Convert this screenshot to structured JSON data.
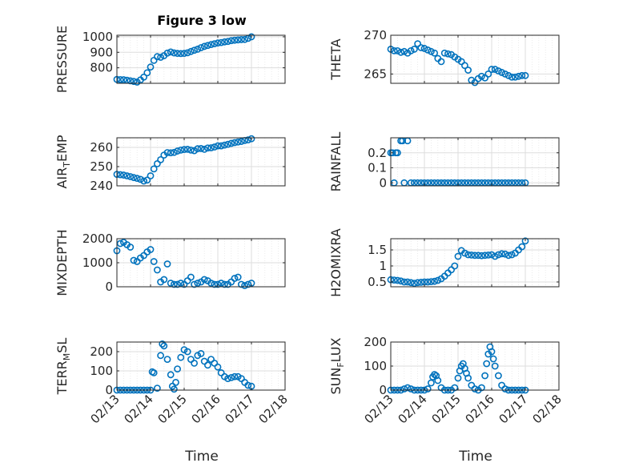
{
  "figure": {
    "title": "Figure 3 low",
    "xlabel": "Time",
    "x_ticks": [
      "02/13",
      "02/14",
      "02/15",
      "02/16",
      "02/17",
      "02/18"
    ],
    "marker_color": "#0072BD",
    "grid_color": "#dddddd",
    "axis_color": "#262626"
  },
  "chart_data": [
    {
      "type": "scatter",
      "title": "Figure 3 low",
      "xlabel": "",
      "ylabel": "PRESSURE",
      "xlim": [
        0,
        5
      ],
      "ylim": [
        700,
        1010
      ],
      "y_ticks": [
        800,
        900,
        1000
      ],
      "y_tick_labels": [
        "800",
        "900",
        "1000"
      ],
      "x_tick_labels": [],
      "grid": true,
      "x": [
        0.0,
        0.1,
        0.2,
        0.3,
        0.4,
        0.5,
        0.6,
        0.7,
        0.8,
        0.9,
        1.0,
        1.1,
        1.2,
        1.3,
        1.4,
        1.5,
        1.6,
        1.7,
        1.8,
        1.9,
        2.0,
        2.1,
        2.2,
        2.3,
        2.4,
        2.5,
        2.6,
        2.7,
        2.8,
        2.9,
        3.0,
        3.1,
        3.2,
        3.3,
        3.4,
        3.5,
        3.6,
        3.7,
        3.8,
        3.9,
        4.0
      ],
      "y": [
        725,
        724,
        723,
        720,
        716,
        712,
        708,
        722,
        740,
        768,
        805,
        848,
        872,
        868,
        878,
        895,
        902,
        896,
        893,
        892,
        893,
        897,
        905,
        913,
        920,
        930,
        938,
        944,
        950,
        955,
        960,
        963,
        967,
        970,
        975,
        978,
        980,
        982,
        983,
        990,
        1000
      ]
    },
    {
      "type": "scatter",
      "title": "",
      "xlabel": "",
      "ylabel": "THETA",
      "xlim": [
        0,
        5
      ],
      "ylim": [
        263.8,
        270
      ],
      "y_ticks": [
        265,
        270
      ],
      "y_tick_labels": [
        "265",
        "270"
      ],
      "x_tick_labels": [],
      "grid": true,
      "x": [
        0.0,
        0.1,
        0.2,
        0.3,
        0.4,
        0.5,
        0.6,
        0.7,
        0.8,
        0.9,
        1.0,
        1.1,
        1.2,
        1.3,
        1.4,
        1.5,
        1.6,
        1.7,
        1.8,
        1.9,
        2.0,
        2.1,
        2.2,
        2.3,
        2.4,
        2.5,
        2.6,
        2.7,
        2.8,
        2.9,
        3.0,
        3.1,
        3.2,
        3.3,
        3.4,
        3.5,
        3.6,
        3.7,
        3.8,
        3.9,
        4.0
      ],
      "y": [
        268.2,
        268.0,
        268.0,
        267.8,
        267.9,
        267.7,
        268.0,
        268.2,
        268.9,
        268.4,
        268.3,
        268.1,
        267.9,
        267.7,
        267.0,
        266.6,
        267.7,
        267.6,
        267.5,
        267.2,
        266.9,
        266.6,
        266.1,
        265.5,
        264.2,
        263.9,
        264.4,
        264.7,
        264.5,
        265.0,
        265.6,
        265.6,
        265.4,
        265.2,
        265.0,
        264.8,
        264.6,
        264.6,
        264.7,
        264.8,
        264.8
      ]
    },
    {
      "type": "scatter",
      "title": "",
      "xlabel": "",
      "ylabel": "AIR",
      "ylabel_sub": "T",
      "ylabel_tail": "EMP",
      "xlim": [
        0,
        5
      ],
      "ylim": [
        240,
        265
      ],
      "y_ticks": [
        240,
        250,
        260
      ],
      "y_tick_labels": [
        "240",
        "250",
        "260"
      ],
      "x_tick_labels": [],
      "grid": true,
      "x": [
        0.0,
        0.1,
        0.2,
        0.3,
        0.4,
        0.5,
        0.6,
        0.7,
        0.8,
        0.9,
        1.0,
        1.1,
        1.2,
        1.3,
        1.4,
        1.5,
        1.6,
        1.7,
        1.8,
        1.9,
        2.0,
        2.1,
        2.2,
        2.3,
        2.4,
        2.5,
        2.6,
        2.7,
        2.8,
        2.9,
        3.0,
        3.1,
        3.2,
        3.3,
        3.4,
        3.5,
        3.6,
        3.7,
        3.8,
        3.9,
        4.0
      ],
      "y": [
        246.0,
        245.8,
        245.6,
        245.2,
        244.8,
        244.3,
        243.9,
        243.4,
        242.5,
        243.0,
        245.2,
        248.8,
        251.5,
        253.6,
        256.0,
        257.3,
        257.2,
        257.4,
        258.1,
        258.6,
        258.9,
        259.0,
        258.6,
        258.3,
        259.3,
        259.4,
        259.0,
        259.7,
        259.8,
        260.2,
        260.8,
        260.8,
        261.2,
        261.6,
        262.1,
        262.5,
        262.8,
        263.1,
        263.6,
        263.9,
        264.5
      ]
    },
    {
      "type": "scatter",
      "title": "",
      "xlabel": "",
      "ylabel": "RAINFALL",
      "xlim": [
        0,
        5
      ],
      "ylim": [
        -0.02,
        0.3
      ],
      "y_ticks": [
        0,
        0.1,
        0.2
      ],
      "y_tick_labels": [
        "0",
        "0.1",
        "0.2"
      ],
      "x_tick_labels": [],
      "grid": true,
      "x": [
        0.0,
        0.05,
        0.1,
        0.15,
        0.2,
        0.3,
        0.35,
        0.4,
        0.5,
        0.6,
        0.7,
        0.8,
        0.9,
        1.0,
        1.1,
        1.2,
        1.3,
        1.4,
        1.5,
        1.6,
        1.7,
        1.8,
        1.9,
        2.0,
        2.1,
        2.2,
        2.3,
        2.4,
        2.5,
        2.6,
        2.7,
        2.8,
        2.9,
        3.0,
        3.1,
        3.2,
        3.3,
        3.4,
        3.5,
        3.6,
        3.7,
        3.8,
        3.9,
        4.0
      ],
      "y": [
        0.2,
        0.2,
        0,
        0.2,
        0.2,
        0.28,
        0.28,
        0,
        0.28,
        0,
        0,
        0,
        0,
        0,
        0,
        0,
        0,
        0,
        0,
        0,
        0,
        0,
        0,
        0,
        0,
        0,
        0,
        0,
        0,
        0,
        0,
        0,
        0,
        0,
        0,
        0,
        0,
        0,
        0,
        0,
        0,
        0,
        0,
        0
      ]
    },
    {
      "type": "scatter",
      "title": "",
      "xlabel": "",
      "ylabel": "MIXDEPTH",
      "xlim": [
        0,
        5
      ],
      "ylim": [
        0,
        2000
      ],
      "y_ticks": [
        0,
        1000,
        2000
      ],
      "y_tick_labels": [
        "0",
        "1000",
        "2000"
      ],
      "x_tick_labels": [],
      "grid": true,
      "x": [
        0.0,
        0.1,
        0.2,
        0.3,
        0.4,
        0.5,
        0.6,
        0.7,
        0.8,
        0.9,
        1.0,
        1.1,
        1.2,
        1.3,
        1.4,
        1.5,
        1.6,
        1.7,
        1.8,
        1.9,
        2.0,
        2.1,
        2.2,
        2.3,
        2.4,
        2.5,
        2.6,
        2.7,
        2.8,
        2.9,
        3.0,
        3.1,
        3.2,
        3.3,
        3.4,
        3.5,
        3.6,
        3.7,
        3.8,
        3.9,
        4.0
      ],
      "y": [
        1500,
        1800,
        1850,
        1750,
        1650,
        1100,
        1050,
        1200,
        1300,
        1450,
        1550,
        1050,
        700,
        200,
        300,
        950,
        150,
        100,
        100,
        150,
        100,
        250,
        400,
        100,
        150,
        200,
        300,
        250,
        150,
        100,
        100,
        150,
        100,
        100,
        200,
        350,
        400,
        100,
        50,
        100,
        150
      ]
    },
    {
      "type": "scatter",
      "title": "",
      "xlabel": "",
      "ylabel": "H2OMIXRA",
      "xlim": [
        0,
        5
      ],
      "ylim": [
        0.35,
        1.85
      ],
      "y_ticks": [
        0.5,
        1,
        1.5
      ],
      "y_tick_labels": [
        "0.5",
        "1",
        "1.5"
      ],
      "x_tick_labels": [],
      "grid": true,
      "x": [
        0.0,
        0.1,
        0.2,
        0.3,
        0.4,
        0.5,
        0.6,
        0.7,
        0.8,
        0.9,
        1.0,
        1.1,
        1.2,
        1.3,
        1.4,
        1.5,
        1.6,
        1.7,
        1.8,
        1.9,
        2.0,
        2.1,
        2.2,
        2.3,
        2.4,
        2.5,
        2.6,
        2.7,
        2.8,
        2.9,
        3.0,
        3.1,
        3.2,
        3.3,
        3.4,
        3.5,
        3.6,
        3.7,
        3.8,
        3.9,
        4.0
      ],
      "y": [
        0.57,
        0.56,
        0.55,
        0.53,
        0.5,
        0.5,
        0.48,
        0.46,
        0.48,
        0.49,
        0.5,
        0.5,
        0.51,
        0.52,
        0.55,
        0.6,
        0.68,
        0.78,
        0.88,
        1.0,
        1.3,
        1.48,
        1.4,
        1.35,
        1.34,
        1.33,
        1.33,
        1.32,
        1.33,
        1.34,
        1.35,
        1.3,
        1.35,
        1.38,
        1.37,
        1.33,
        1.35,
        1.4,
        1.5,
        1.6,
        1.78
      ]
    },
    {
      "type": "scatter",
      "title": "",
      "xlabel": "",
      "ylabel": "TERR",
      "ylabel_sub": "M",
      "ylabel_tail": "SL",
      "xlim": [
        0,
        5
      ],
      "ylim": [
        0,
        250
      ],
      "y_ticks": [
        0,
        100,
        200
      ],
      "y_tick_labels": [
        "0",
        "100",
        "200"
      ],
      "x_tick_labels": [
        "02/13",
        "02/14",
        "02/15",
        "02/16",
        "02/17",
        "02/18"
      ],
      "grid": true,
      "x": [
        0.0,
        0.1,
        0.2,
        0.3,
        0.4,
        0.5,
        0.6,
        0.7,
        0.8,
        0.9,
        1.0,
        1.05,
        1.1,
        1.2,
        1.3,
        1.35,
        1.4,
        1.5,
        1.6,
        1.65,
        1.7,
        1.75,
        1.8,
        1.9,
        2.0,
        2.1,
        2.2,
        2.3,
        2.4,
        2.5,
        2.6,
        2.7,
        2.8,
        2.9,
        3.0,
        3.1,
        3.2,
        3.3,
        3.4,
        3.5,
        3.6,
        3.7,
        3.8,
        3.9,
        4.0
      ],
      "y": [
        0,
        0,
        0,
        0,
        0,
        0,
        0,
        0,
        0,
        0,
        0,
        95,
        90,
        10,
        180,
        240,
        230,
        160,
        80,
        20,
        5,
        40,
        110,
        170,
        210,
        200,
        160,
        140,
        180,
        190,
        150,
        130,
        160,
        140,
        120,
        90,
        70,
        60,
        65,
        70,
        70,
        60,
        40,
        25,
        20
      ]
    },
    {
      "type": "scatter",
      "title": "",
      "xlabel": "",
      "ylabel": "SUN",
      "ylabel_sub": "F",
      "ylabel_tail": "LUX",
      "xlim": [
        0,
        5
      ],
      "ylim": [
        0,
        200
      ],
      "y_ticks": [
        0,
        100,
        200
      ],
      "y_tick_labels": [
        "0",
        "100",
        "200"
      ],
      "x_tick_labels": [
        "02/13",
        "02/14",
        "02/15",
        "02/16",
        "02/17",
        "02/18"
      ],
      "grid": true,
      "x": [
        0.0,
        0.1,
        0.2,
        0.3,
        0.4,
        0.5,
        0.6,
        0.7,
        0.8,
        0.9,
        1.0,
        1.1,
        1.2,
        1.25,
        1.3,
        1.35,
        1.4,
        1.5,
        1.6,
        1.7,
        1.8,
        1.9,
        2.0,
        2.05,
        2.1,
        2.15,
        2.2,
        2.25,
        2.3,
        2.4,
        2.5,
        2.6,
        2.7,
        2.8,
        2.85,
        2.9,
        2.95,
        3.0,
        3.05,
        3.1,
        3.2,
        3.3,
        3.4,
        3.5,
        3.6,
        3.7,
        3.8,
        3.9,
        4.0
      ],
      "y": [
        0,
        0,
        0,
        0,
        5,
        10,
        5,
        0,
        0,
        0,
        0,
        5,
        30,
        55,
        65,
        60,
        40,
        10,
        0,
        0,
        0,
        10,
        50,
        80,
        100,
        110,
        90,
        70,
        50,
        20,
        5,
        0,
        10,
        60,
        110,
        150,
        180,
        160,
        130,
        100,
        60,
        20,
        5,
        0,
        0,
        0,
        0,
        0,
        0
      ]
    }
  ]
}
